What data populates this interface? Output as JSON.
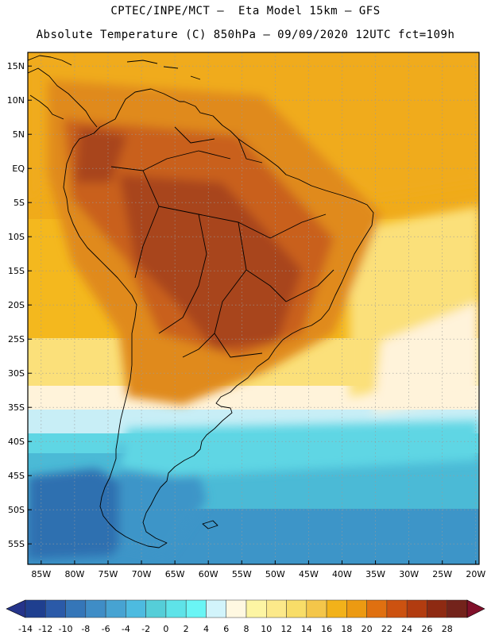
{
  "header": {
    "line1": "CPTEC/INPE/MCT –  Eta Model 15km – GFS",
    "line2": "Absolute Temperature (C) 850hPa – 09/09/2020 12UTC fct=109h"
  },
  "lat_labels": [
    "15N",
    "10N",
    "5N",
    "EQ",
    "5S",
    "10S",
    "15S",
    "20S",
    "25S",
    "30S",
    "35S",
    "40S",
    "45S",
    "50S",
    "55S"
  ],
  "lon_labels": [
    "85W",
    "80W",
    "75W",
    "70W",
    "65W",
    "60W",
    "55W",
    "50W",
    "45W",
    "40W",
    "35W",
    "30W",
    "25W",
    "20W"
  ],
  "colorbar": {
    "labels": [
      "-14",
      "-12",
      "-10",
      "-8",
      "-6",
      "-4",
      "-2",
      "0",
      "2",
      "4",
      "6",
      "8",
      "10",
      "12",
      "14",
      "16",
      "18",
      "20",
      "22",
      "24",
      "26",
      "28"
    ],
    "colors": [
      "#1f3f8f",
      "#2b5aa8",
      "#3576b8",
      "#3f8dc6",
      "#47a3d2",
      "#4dbbe0",
      "#55ced8",
      "#5ee3e8",
      "#6af5f5",
      "#d2f4fb",
      "#fff8e1",
      "#fdf5a3",
      "#fce98a",
      "#f8dd68",
      "#f4c64a",
      "#f2b21a",
      "#ec9a12",
      "#e07010",
      "#cc5210",
      "#b23c10",
      "#8e2a12",
      "#73231b"
    ],
    "low_arrow_color": "#25348a",
    "high_arrow_color": "#80102a"
  },
  "map_colors": {
    "very_hot": "#a8441a",
    "hot": "#c9601a",
    "warm": "#e08a1a",
    "mild_warm": "#f0ab1a",
    "ocean_warm": "#f4b81e",
    "yellow": "#fbe07a",
    "cream": "#fff3da",
    "pale_cyan": "#c8eef6",
    "cyan": "#5fd6e4",
    "blue_cyan": "#4bbad6",
    "blue": "#3d95c8",
    "deep_blue": "#2e6fb0"
  }
}
